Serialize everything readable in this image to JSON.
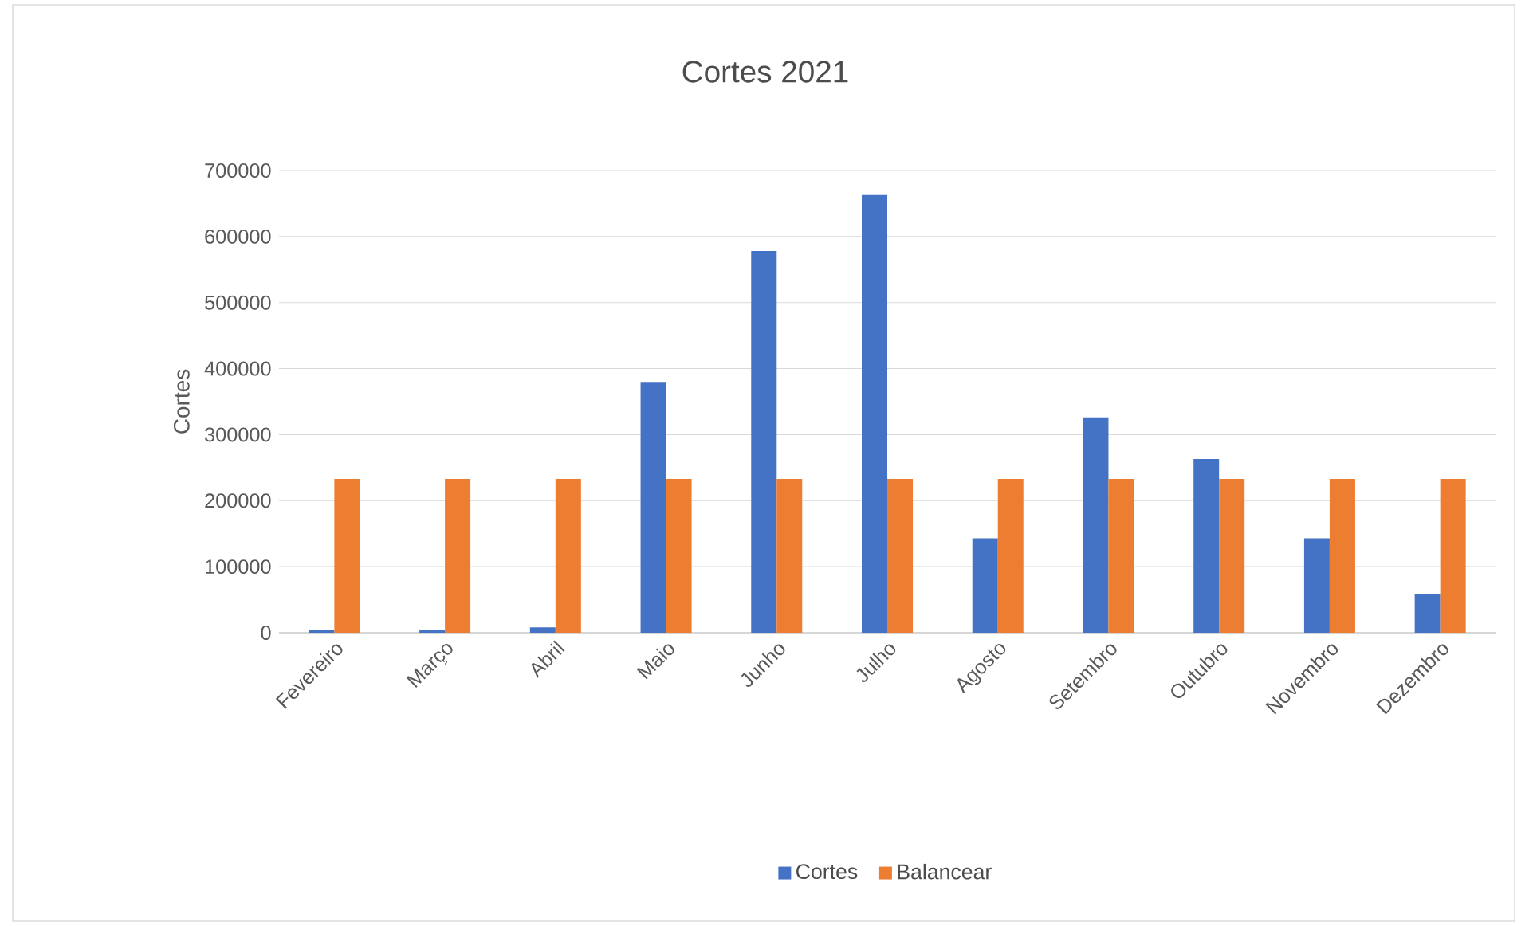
{
  "chart_data": {
    "type": "bar",
    "title": "Cortes 2021",
    "ylabel": "Cortes",
    "categories": [
      "Fevereiro",
      "Março",
      "Abril",
      "Maio",
      "Junho",
      "Julho",
      "Agosto",
      "Setembro",
      "Outubro",
      "Novembro",
      "Dezembro"
    ],
    "series": [
      {
        "name": "Cortes",
        "color": "#4472c4",
        "values": [
          4000,
          4000,
          8000,
          380000,
          578000,
          663000,
          143000,
          326000,
          263000,
          143000,
          58000
        ]
      },
      {
        "name": "Balancear",
        "color": "#ed7d31",
        "values": [
          233000,
          233000,
          233000,
          233000,
          233000,
          233000,
          233000,
          233000,
          233000,
          233000,
          233000
        ]
      }
    ],
    "ylim": [
      0,
      700000
    ],
    "yticks": [
      0,
      100000,
      200000,
      300000,
      400000,
      500000,
      600000,
      700000
    ],
    "grid": "y",
    "legend": "bottom"
  }
}
